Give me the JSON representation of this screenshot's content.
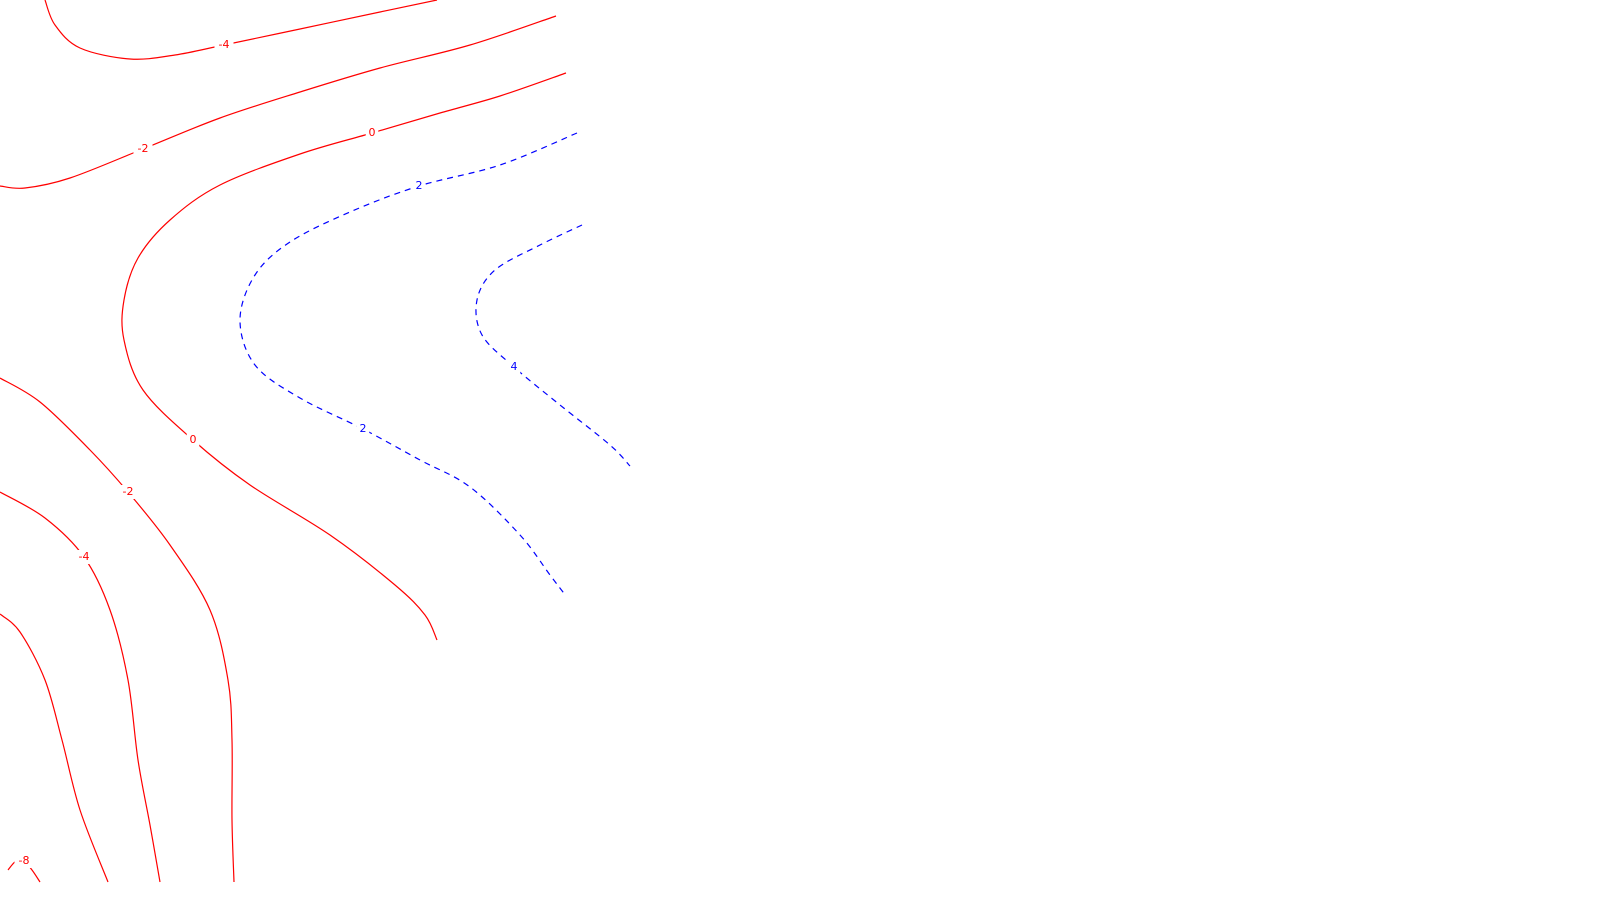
{
  "chart_data": {
    "type": "contour",
    "title": "",
    "xlabel": "",
    "ylabel": "",
    "grid": false,
    "legend": "none",
    "colors": {
      "negative_and_zero": "#ff0000",
      "positive": "#0000ff"
    },
    "contours": [
      {
        "level": -4,
        "label": "-4",
        "style": "solid",
        "color": "#ff0000",
        "points": [
          [
            45,
            0
          ],
          [
            55,
            25
          ],
          [
            80,
            48
          ],
          [
            130,
            59
          ],
          [
            175,
            55
          ],
          [
            224,
            45
          ],
          [
            300,
            29
          ],
          [
            380,
            12
          ],
          [
            437,
            0
          ]
        ],
        "label_at": [
          224,
          45
        ]
      },
      {
        "level": -2,
        "label": "-2",
        "style": "solid",
        "color": "#ff0000",
        "points": [
          [
            0,
            186
          ],
          [
            25,
            188
          ],
          [
            70,
            178
          ],
          [
            143,
            149
          ],
          [
            220,
            118
          ],
          [
            300,
            92
          ],
          [
            380,
            68
          ],
          [
            470,
            45
          ],
          [
            556,
            16
          ]
        ],
        "label_at": [
          143,
          149
        ]
      },
      {
        "level": 0,
        "label": "0",
        "style": "solid",
        "color": "#ff0000",
        "points": [
          [
            566,
            73
          ],
          [
            500,
            96
          ],
          [
            440,
            113
          ],
          [
            372,
            133
          ],
          [
            300,
            154
          ],
          [
            220,
            185
          ],
          [
            170,
            220
          ],
          [
            138,
            258
          ],
          [
            124,
            300
          ],
          [
            124,
            340
          ],
          [
            143,
            390
          ],
          [
            193,
            440
          ],
          [
            250,
            485
          ],
          [
            330,
            535
          ],
          [
            395,
            585
          ],
          [
            425,
            615
          ],
          [
            437,
            640
          ]
        ],
        "label_at": [
          372,
          133
        ]
      },
      {
        "level": 0,
        "label": "0",
        "style": "solid",
        "color": "#ff0000",
        "points": [],
        "label_at": [
          193,
          440
        ]
      },
      {
        "level": -2,
        "label": "-2",
        "style": "solid",
        "color": "#ff0000",
        "points": [
          [
            0,
            378
          ],
          [
            40,
            402
          ],
          [
            90,
            450
          ],
          [
            128,
            492
          ],
          [
            170,
            545
          ],
          [
            210,
            610
          ],
          [
            228,
            680
          ],
          [
            232,
            740
          ],
          [
            232,
            820
          ],
          [
            234,
            882
          ]
        ],
        "label_at": [
          128,
          492
        ]
      },
      {
        "level": -4,
        "label": "-4",
        "style": "solid",
        "color": "#ff0000",
        "points": [
          [
            0,
            492
          ],
          [
            45,
            518
          ],
          [
            84,
            557
          ],
          [
            110,
            610
          ],
          [
            128,
            680
          ],
          [
            138,
            760
          ],
          [
            150,
            825
          ],
          [
            160,
            882
          ]
        ],
        "label_at": [
          84,
          557
        ]
      },
      {
        "level": -6,
        "label": "",
        "style": "solid",
        "color": "#ff0000",
        "points": [
          [
            0,
            614
          ],
          [
            20,
            632
          ],
          [
            45,
            680
          ],
          [
            62,
            740
          ],
          [
            80,
            810
          ],
          [
            108,
            882
          ]
        ],
        "label_at": null
      },
      {
        "level": -8,
        "label": "-8",
        "style": "solid",
        "color": "#ff0000",
        "points": [
          [
            8,
            870
          ],
          [
            16,
            861
          ],
          [
            24,
            861
          ],
          [
            32,
            870
          ],
          [
            40,
            882
          ]
        ],
        "label_at": [
          24,
          861
        ]
      },
      {
        "level": 2,
        "label": "2",
        "style": "dashed",
        "color": "#0000ff",
        "points": [
          [
            577,
            133
          ],
          [
            500,
            165
          ],
          [
            419,
            186
          ],
          [
            350,
            212
          ],
          [
            290,
            242
          ],
          [
            255,
            275
          ],
          [
            240,
            320
          ],
          [
            255,
            365
          ],
          [
            300,
            398
          ],
          [
            363,
            429
          ],
          [
            420,
            460
          ],
          [
            470,
            487
          ],
          [
            520,
            535
          ],
          [
            550,
            575
          ],
          [
            566,
            596
          ]
        ],
        "label_at": [
          419,
          186
        ]
      },
      {
        "level": 2,
        "label": "2",
        "style": "dashed",
        "color": "#0000ff",
        "points": [],
        "label_at": [
          363,
          429
        ]
      },
      {
        "level": 4,
        "label": "4",
        "style": "dashed",
        "color": "#0000ff",
        "points": [
          [
            582,
            225
          ],
          [
            540,
            245
          ],
          [
            495,
            270
          ],
          [
            477,
            300
          ],
          [
            482,
            335
          ],
          [
            514,
            367
          ],
          [
            560,
            405
          ],
          [
            610,
            445
          ],
          [
            630,
            466
          ]
        ],
        "label_at": [
          514,
          367
        ]
      }
    ]
  }
}
